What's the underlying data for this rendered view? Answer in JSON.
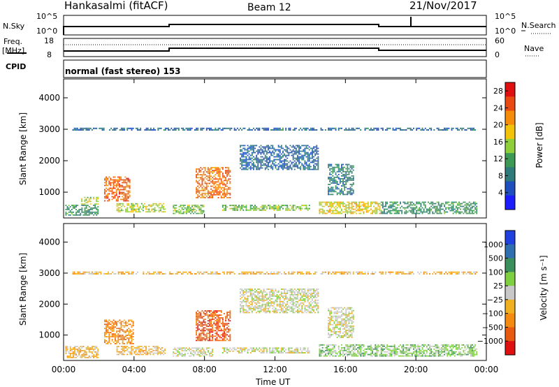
{
  "header": {
    "station": "Hankasalmi (fitACF)",
    "beam": "Beam 12",
    "date": "21/Nov/2017"
  },
  "status_panels": {
    "nsky": {
      "label": "N.Sky",
      "ticks": [
        "10^5",
        "10^0"
      ]
    },
    "nsearch": {
      "label": "N.Search",
      "ticks": [
        "10^5",
        "10^0"
      ]
    },
    "freq": {
      "label_line1": "Freq.",
      "label_line2": "[MHz]",
      "ticks": [
        "18",
        "8"
      ]
    },
    "nave": {
      "label": "Nave",
      "ticks": [
        "60",
        "0"
      ]
    },
    "cpid": {
      "label": "CPID",
      "mode_text": "normal (fast stereo) 153"
    }
  },
  "chart_data": [
    {
      "type": "heatmap",
      "panel": "power",
      "ylabel": "Slant Range [km]",
      "ylim": [
        180,
        4600
      ],
      "yticks": [
        1000,
        2000,
        3000,
        4000
      ],
      "xlim": [
        0,
        24
      ],
      "xticks": [
        "00:00",
        "04:00",
        "08:00",
        "12:00",
        "16:00",
        "20:00",
        "00:00"
      ],
      "colorbar": {
        "label": "Power [dB]",
        "range": [
          0,
          30
        ],
        "ticks": [
          "4",
          "8",
          "12",
          "16",
          "20",
          "24",
          "28"
        ],
        "colors": [
          "#1c1cff",
          "#1f4fbf",
          "#2f7a7a",
          "#3c9a55",
          "#8fcf3a",
          "#f3c20a",
          "#f58c0a",
          "#ea4a12",
          "#e01010"
        ]
      },
      "features": [
        {
          "t_start": 0.1,
          "t_end": 2.0,
          "r_start": 250,
          "r_end": 600,
          "level": 10
        },
        {
          "t_start": 1.0,
          "t_end": 2.0,
          "r_start": 600,
          "r_end": 850,
          "level": 16
        },
        {
          "t_start": 2.3,
          "t_end": 3.8,
          "r_start": 700,
          "r_end": 1500,
          "level": 25
        },
        {
          "t_start": 3.0,
          "t_end": 5.8,
          "r_start": 350,
          "r_end": 650,
          "level": 16
        },
        {
          "t_start": 6.2,
          "t_end": 8.0,
          "r_start": 300,
          "r_end": 600,
          "level": 14
        },
        {
          "t_start": 7.5,
          "t_end": 9.5,
          "r_start": 800,
          "r_end": 1800,
          "level": 24
        },
        {
          "t_start": 9.0,
          "t_end": 14.0,
          "r_start": 400,
          "r_end": 600,
          "level": 14
        },
        {
          "t_start": 14.5,
          "t_end": 18.0,
          "r_start": 300,
          "r_end": 700,
          "level": 18
        },
        {
          "t_start": 15.0,
          "t_end": 16.5,
          "r_start": 900,
          "r_end": 1900,
          "level": 8
        },
        {
          "t_start": 10.0,
          "t_end": 14.5,
          "r_start": 1700,
          "r_end": 2500,
          "level": 6
        },
        {
          "t_start": 18.0,
          "t_end": 23.5,
          "r_start": 300,
          "r_end": 700,
          "level": 10
        },
        {
          "t_start": 0.5,
          "t_end": 23.5,
          "r_start": 2950,
          "r_end": 3050,
          "level": 6
        }
      ]
    },
    {
      "type": "heatmap",
      "panel": "velocity",
      "ylabel": "Slant Range [km]",
      "xlabel": "Time UT",
      "ylim": [
        180,
        4600
      ],
      "yticks": [
        1000,
        2000,
        3000,
        4000
      ],
      "xlim": [
        0,
        24
      ],
      "xticks": [
        "00:00",
        "04:00",
        "08:00",
        "12:00",
        "16:00",
        "20:00",
        "00:00"
      ],
      "colorbar": {
        "label": "Velocity [m s⁻¹]",
        "ticks": [
          "1000",
          "500",
          "100",
          "25",
          "−25",
          "−100",
          "−500",
          "−1000"
        ],
        "colors": [
          "#2040e0",
          "#2f6fb0",
          "#3a8f5a",
          "#7fd040",
          "#c8c8c8",
          "#f0b020",
          "#f58a10",
          "#e85a10",
          "#e01010"
        ]
      },
      "features": [
        {
          "t_start": 0.1,
          "t_end": 2.0,
          "r_start": 250,
          "r_end": 650,
          "level": 5
        },
        {
          "t_start": 2.3,
          "t_end": 4.0,
          "r_start": 700,
          "r_end": 1500,
          "level": 6
        },
        {
          "t_start": 3.0,
          "t_end": 5.8,
          "r_start": 350,
          "r_end": 650,
          "level": 5
        },
        {
          "t_start": 6.2,
          "t_end": 8.5,
          "r_start": 300,
          "r_end": 600,
          "level": 4
        },
        {
          "t_start": 7.5,
          "t_end": 9.5,
          "r_start": 800,
          "r_end": 1800,
          "level": 7
        },
        {
          "t_start": 9.0,
          "t_end": 14.0,
          "r_start": 400,
          "r_end": 600,
          "level": 4
        },
        {
          "t_start": 14.5,
          "t_end": 18.0,
          "r_start": 300,
          "r_end": 700,
          "level": 3
        },
        {
          "t_start": 15.0,
          "t_end": 16.5,
          "r_start": 900,
          "r_end": 1900,
          "level": 4
        },
        {
          "t_start": 10.0,
          "t_end": 14.5,
          "r_start": 1700,
          "r_end": 2500,
          "level": 4
        },
        {
          "t_start": 18.0,
          "t_end": 23.5,
          "r_start": 300,
          "r_end": 700,
          "level": 3
        },
        {
          "t_start": 0.5,
          "t_end": 23.5,
          "r_start": 2950,
          "r_end": 3050,
          "level": 5
        }
      ]
    }
  ]
}
